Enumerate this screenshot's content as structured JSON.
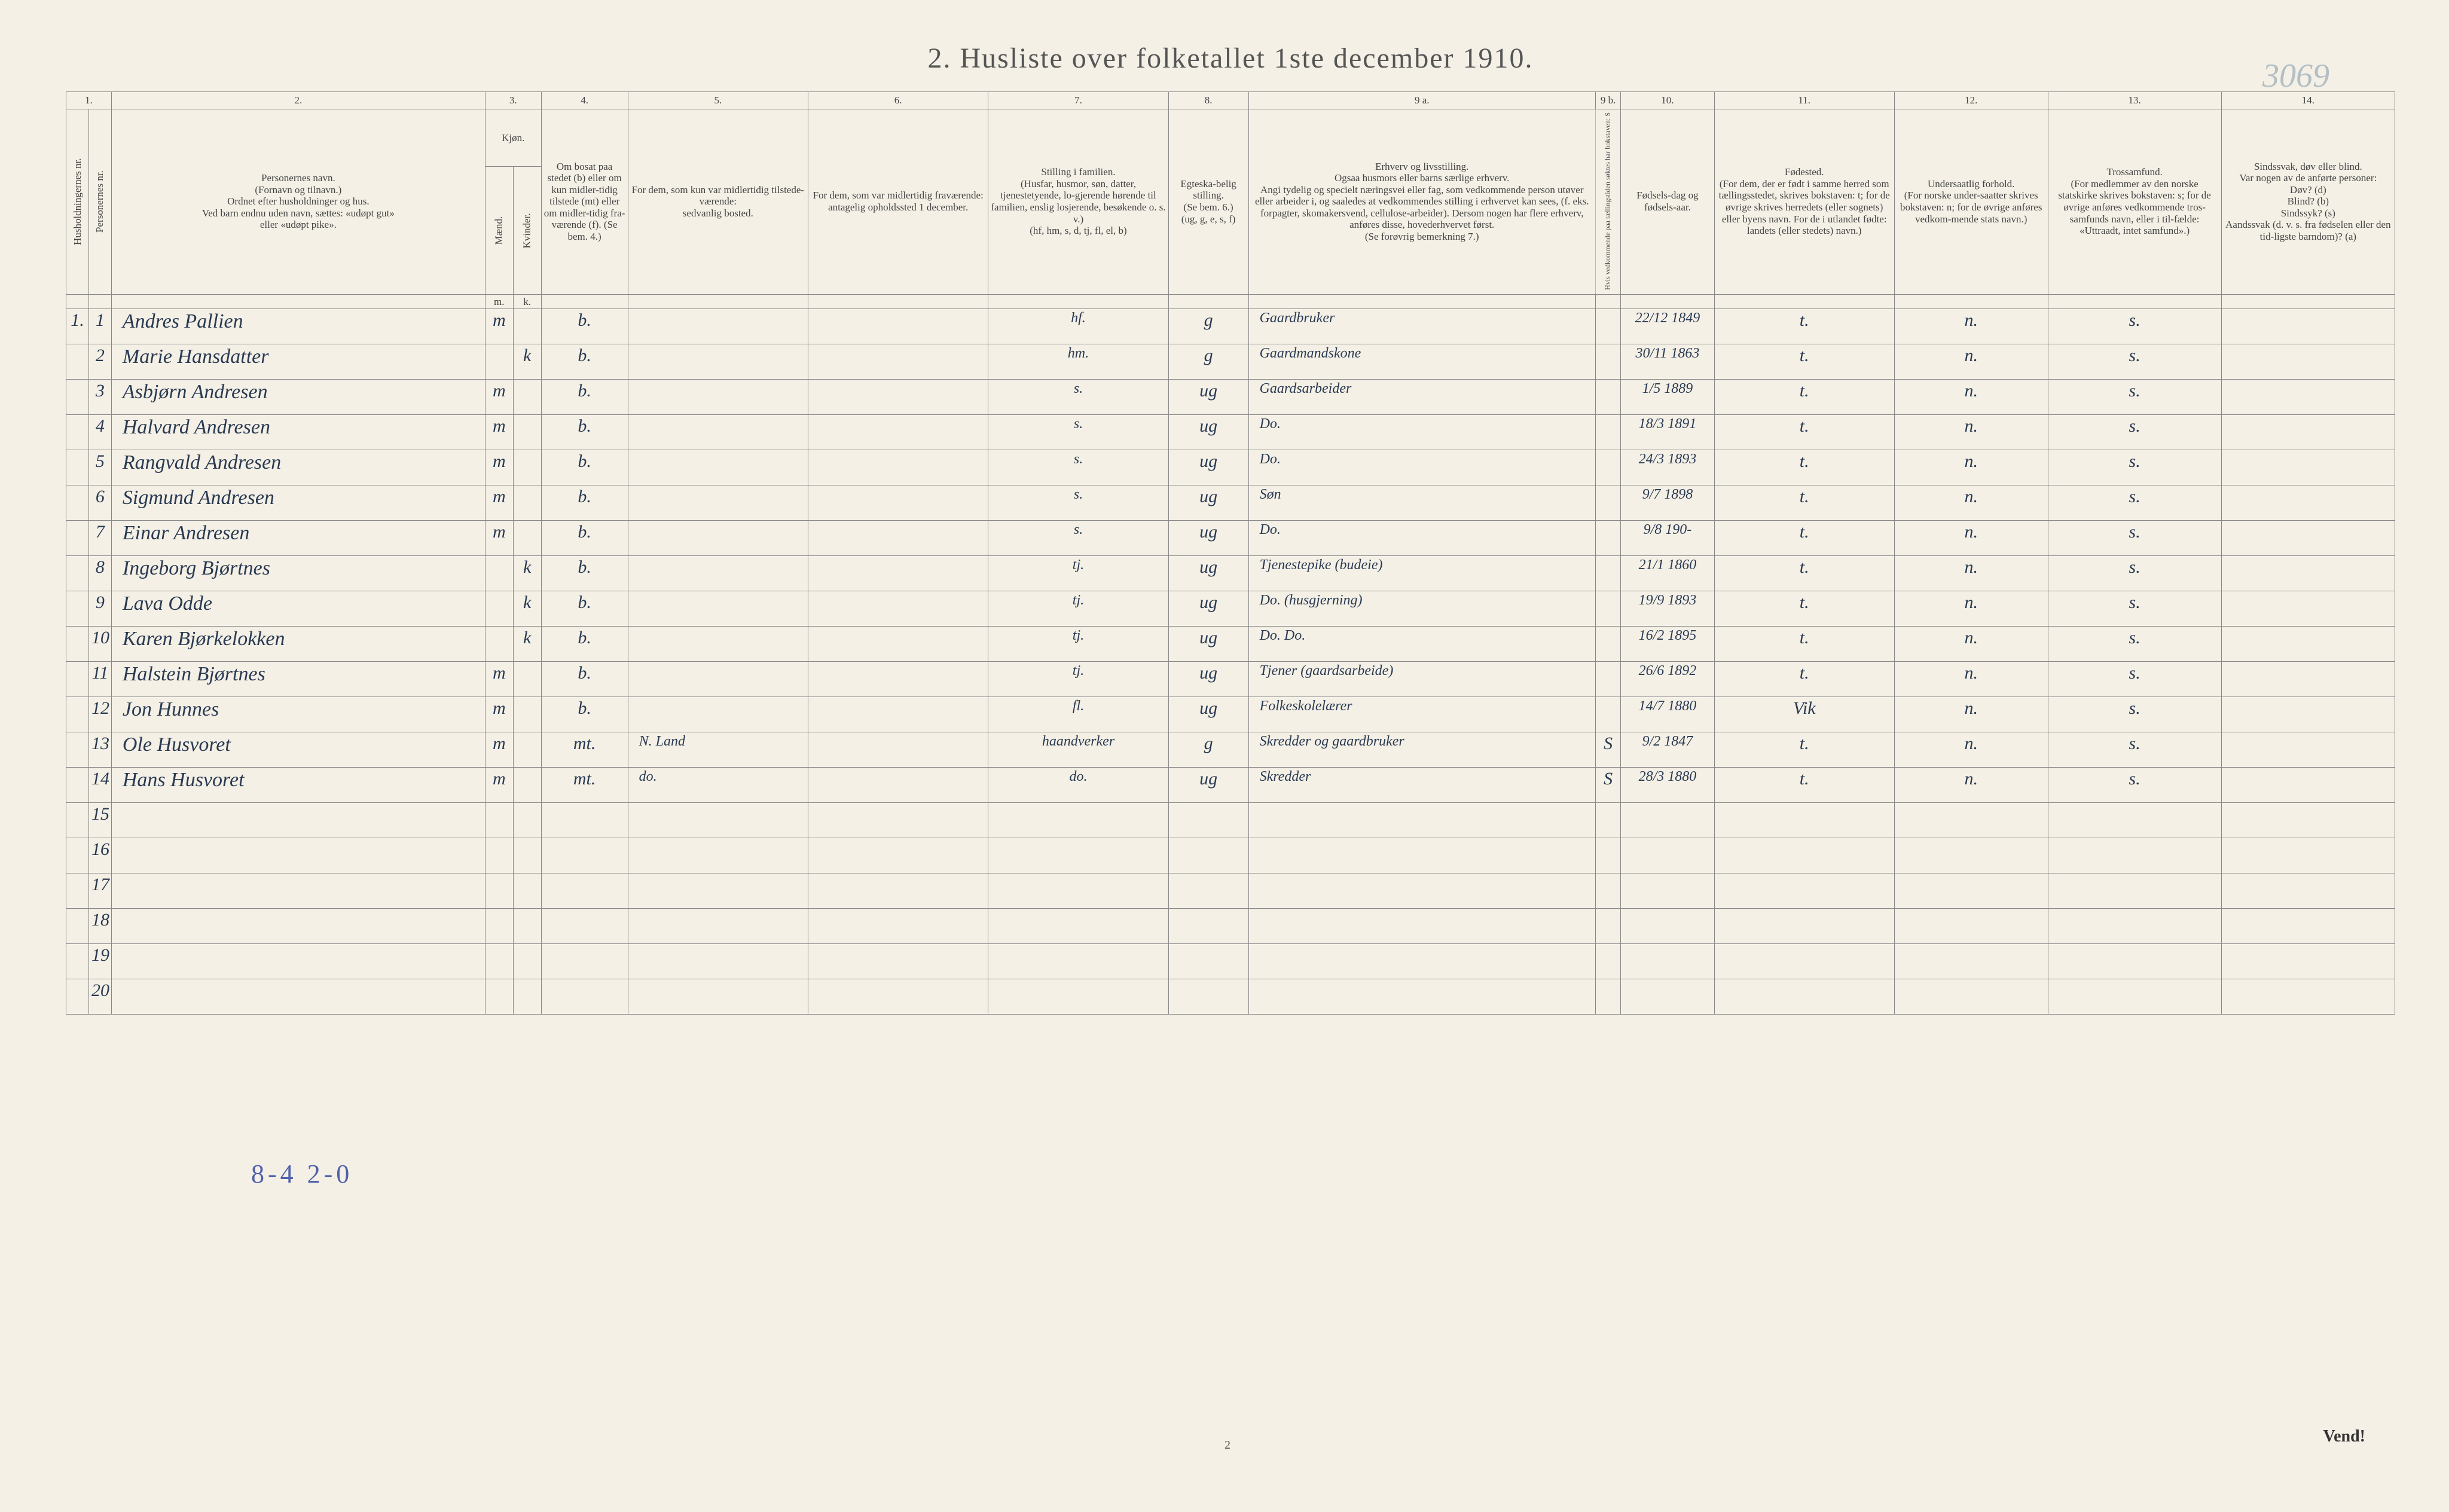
{
  "title": "2.  Husliste over folketallet 1ste december 1910.",
  "page_ref": "3069",
  "footer_tally": "8-4 2-0",
  "vend": "Vend!",
  "page_number_small": "2",
  "colors": {
    "paper": "#f4f0e6",
    "ink_print": "#555555",
    "ink_pen": "#2a3a52",
    "pencil": "#5060aa",
    "gray_pencil": "#8a9fb0",
    "rule": "#888888"
  },
  "fonts": {
    "title_pt": 48,
    "header_pt": 17,
    "handwriting_pt": 30
  },
  "column_numbers": [
    "1.",
    "2.",
    "3.",
    "4.",
    "5.",
    "6.",
    "7.",
    "8.",
    "9 a.",
    "9 b.",
    "10.",
    "11.",
    "12.",
    "13.",
    "14."
  ],
  "headers": {
    "c1": "Husholdningernes nr.",
    "c1b": "Personernes nr.",
    "c2": "Personernes navn.\n(Fornavn og tilnavn.)\nOrdnet efter husholdninger og hus.\nVed barn endnu uden navn, sættes: «udøpt gut»\neller «udøpt pike».",
    "c3": "Kjøn.",
    "c3a": "Mænd.",
    "c3b": "Kvinder.",
    "c4": "Om bosat paa stedet (b) eller om kun midler-tidig tilstede (mt) eller om midler-tidig fra-værende (f). (Se bem. 4.)",
    "c5": "For dem, som kun var midlertidig tilstede-værende:\nsedvanlig bosted.",
    "c6": "For dem, som var midlertidig fraværende:\nantagelig opholdssted 1 december.",
    "c7": "Stilling i familien.\n(Husfar, husmor, søn, datter, tjenestetyende, lo-gjerende hørende til familien, enslig losjerende, besøkende o. s. v.)\n(hf, hm, s, d, tj, fl, el, b)",
    "c8": "Egteska-belig stilling.\n(Se bem. 6.)\n(ug, g, e, s, f)",
    "c9a": "Erhverv og livsstilling.\nOgsaa husmors eller barns særlige erhverv.\nAngi tydelig og specielt næringsvei eller fag, som vedkommende person utøver eller arbeider i, og saaledes at vedkommendes stilling i erhvervet kan sees, (f. eks. forpagter, skomakersvend, cellulose-arbeider). Dersom nogen har flere erhverv, anføres disse, hovederhvervet først.\n(Se forøvrig bemerkning 7.)",
    "c9b": "Hvis vedkommende paa tællingstiden søktes har bokstaven: S",
    "c10": "Fødsels-dag og fødsels-aar.",
    "c11": "Fødested.\n(For dem, der er født i samme herred som tællingsstedet, skrives bokstaven: t; for de øvrige skrives herredets (eller sognets) eller byens navn. For de i utlandet fødte: landets (eller stedets) navn.)",
    "c12": "Undersaatlig forhold.\n(For norske under-saatter skrives bokstaven: n; for de øvrige anføres vedkom-mende stats navn.)",
    "c13": "Trossamfund.\n(For medlemmer av den norske statskirke skrives bokstaven: s; for de øvrige anføres vedkommende tros-samfunds navn, eller i til-fælde: «Uttraadt, intet samfund».)",
    "c14": "Sindssvak, døv eller blind.\nVar nogen av de anførte personer:\nDøv? (d)\nBlind? (b)\nSindssyk? (s)\nAandssvak (d. v. s. fra fødselen eller den tid-ligste barndom)? (a)"
  },
  "rows": [
    {
      "hh": "1.",
      "pn": "1",
      "name": "Andres Pallien",
      "m": "m",
      "k": "",
      "stat": "b.",
      "c5": "",
      "c6": "",
      "fam": "hf.",
      "egt": "g",
      "erhv": "Gaardbruker",
      "sb": "",
      "fod": "22/12 1849",
      "fst": "t.",
      "und": "n.",
      "tros": "s.",
      "c14": ""
    },
    {
      "hh": "",
      "pn": "2",
      "name": "Marie Hansdatter",
      "m": "",
      "k": "k",
      "stat": "b.",
      "c5": "",
      "c6": "",
      "fam": "hm.",
      "egt": "g",
      "erhv": "Gaardmandskone",
      "sb": "",
      "fod": "30/11 1863",
      "fst": "t.",
      "und": "n.",
      "tros": "s.",
      "c14": ""
    },
    {
      "hh": "",
      "pn": "3",
      "name": "Asbjørn Andresen",
      "m": "m",
      "k": "",
      "stat": "b.",
      "c5": "",
      "c6": "",
      "fam": "s.",
      "egt": "ug",
      "erhv": "Gaardsarbeider",
      "sb": "",
      "fod": "1/5 1889",
      "fst": "t.",
      "und": "n.",
      "tros": "s.",
      "c14": ""
    },
    {
      "hh": "",
      "pn": "4",
      "name": "Halvard Andresen",
      "m": "m",
      "k": "",
      "stat": "b.",
      "c5": "",
      "c6": "",
      "fam": "s.",
      "egt": "ug",
      "erhv": "Do.",
      "sb": "",
      "fod": "18/3 1891",
      "fst": "t.",
      "und": "n.",
      "tros": "s.",
      "c14": ""
    },
    {
      "hh": "",
      "pn": "5",
      "name": "Rangvald Andresen",
      "m": "m",
      "k": "",
      "stat": "b.",
      "c5": "",
      "c6": "",
      "fam": "s.",
      "egt": "ug",
      "erhv": "Do.",
      "sb": "",
      "fod": "24/3 1893",
      "fst": "t.",
      "und": "n.",
      "tros": "s.",
      "c14": ""
    },
    {
      "hh": "",
      "pn": "6",
      "name": "Sigmund Andresen",
      "m": "m",
      "k": "",
      "stat": "b.",
      "c5": "",
      "c6": "",
      "fam": "s.",
      "egt": "ug",
      "erhv": "Søn",
      "sb": "",
      "fod": "9/7 1898",
      "fst": "t.",
      "und": "n.",
      "tros": "s.",
      "c14": ""
    },
    {
      "hh": "",
      "pn": "7",
      "name": "Einar Andresen",
      "m": "m",
      "k": "",
      "stat": "b.",
      "c5": "",
      "c6": "",
      "fam": "s.",
      "egt": "ug",
      "erhv": "Do.",
      "sb": "",
      "fod": "9/8 190-",
      "fst": "t.",
      "und": "n.",
      "tros": "s.",
      "c14": ""
    },
    {
      "hh": "",
      "pn": "8",
      "name": "Ingeborg Bjørtnes",
      "m": "",
      "k": "k",
      "stat": "b.",
      "c5": "",
      "c6": "",
      "fam": "tj.",
      "egt": "ug",
      "erhv": "Tjenestepike (budeie)",
      "sb": "",
      "fod": "21/1 1860",
      "fst": "t.",
      "und": "n.",
      "tros": "s.",
      "c14": ""
    },
    {
      "hh": "",
      "pn": "9",
      "name": "Lava Odde",
      "m": "",
      "k": "k",
      "stat": "b.",
      "c5": "",
      "c6": "",
      "fam": "tj.",
      "egt": "ug",
      "erhv": "Do.   (husgjerning)",
      "sb": "",
      "fod": "19/9 1893",
      "fst": "t.",
      "und": "n.",
      "tros": "s.",
      "c14": ""
    },
    {
      "hh": "",
      "pn": "10",
      "name": "Karen Bjørkelokken",
      "m": "",
      "k": "k",
      "stat": "b.",
      "c5": "",
      "c6": "",
      "fam": "tj.",
      "egt": "ug",
      "erhv": "Do.     Do.",
      "sb": "",
      "fod": "16/2 1895",
      "fst": "t.",
      "und": "n.",
      "tros": "s.",
      "c14": ""
    },
    {
      "hh": "",
      "pn": "11",
      "name": "Halstein Bjørtnes",
      "m": "m",
      "k": "",
      "stat": "b.",
      "c5": "",
      "c6": "",
      "fam": "tj.",
      "egt": "ug",
      "erhv": "Tjener (gaardsarbeide)",
      "sb": "",
      "fod": "26/6 1892",
      "fst": "t.",
      "und": "n.",
      "tros": "s.",
      "c14": ""
    },
    {
      "hh": "",
      "pn": "12",
      "name": "Jon Hunnes",
      "m": "m",
      "k": "",
      "stat": "b.",
      "c5": "",
      "c6": "",
      "fam": "fl.",
      "egt": "ug",
      "erhv": "Folkeskolelærer",
      "sb": "",
      "fod": "14/7 1880",
      "fst": "Vik",
      "und": "n.",
      "tros": "s.",
      "c14": ""
    },
    {
      "hh": "",
      "pn": "13",
      "name": "Ole Husvoret",
      "m": "m",
      "k": "",
      "stat": "mt.",
      "c5": "N. Land",
      "c6": "",
      "fam": "haandverker",
      "egt": "g",
      "erhv": "Skredder og gaardbruker",
      "sb": "S",
      "fod": "9/2 1847",
      "fst": "t.",
      "und": "n.",
      "tros": "s.",
      "c14": ""
    },
    {
      "hh": "",
      "pn": "14",
      "name": "Hans Husvoret",
      "m": "m",
      "k": "",
      "stat": "mt.",
      "c5": "do.",
      "c6": "",
      "fam": "do.",
      "egt": "ug",
      "erhv": "Skredder",
      "sb": "S",
      "fod": "28/3 1880",
      "fst": "t.",
      "und": "n.",
      "tros": "s.",
      "c14": ""
    }
  ],
  "empty_row_labels": [
    "15",
    "16",
    "17",
    "18",
    "19",
    "20"
  ]
}
